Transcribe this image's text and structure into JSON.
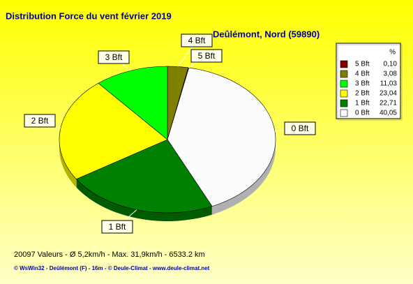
{
  "chart_data": {
    "type": "pie",
    "title": "Distribution Force du vent  février 2019",
    "subtitle": "Deûlémont, Nord (59890)",
    "legend_header": "%",
    "categories": [
      "5 Bft",
      "4 Bft",
      "3 Bft",
      "2 Bft",
      "1 Bft",
      "0 Bft"
    ],
    "values": [
      0.1,
      3.08,
      11.03,
      23.04,
      22.71,
      40.05
    ],
    "value_labels": [
      "0,10",
      "3,08",
      "11,03",
      "23,04",
      "22,71",
      "40,05"
    ],
    "colors": [
      "#800000",
      "#808000",
      "#00ff00",
      "#ffff00",
      "#008000",
      "#fcfcfc"
    ],
    "legend": "right",
    "footer": "20097 Valeurs   -   Ø 5,2km/h  -  Max. 31,9km/h   -   6533.2 km",
    "credit": "© WsWin32  -  Deûlémont (F) - 16m  -  © Deule-Climat - www.deule-climat.net"
  }
}
